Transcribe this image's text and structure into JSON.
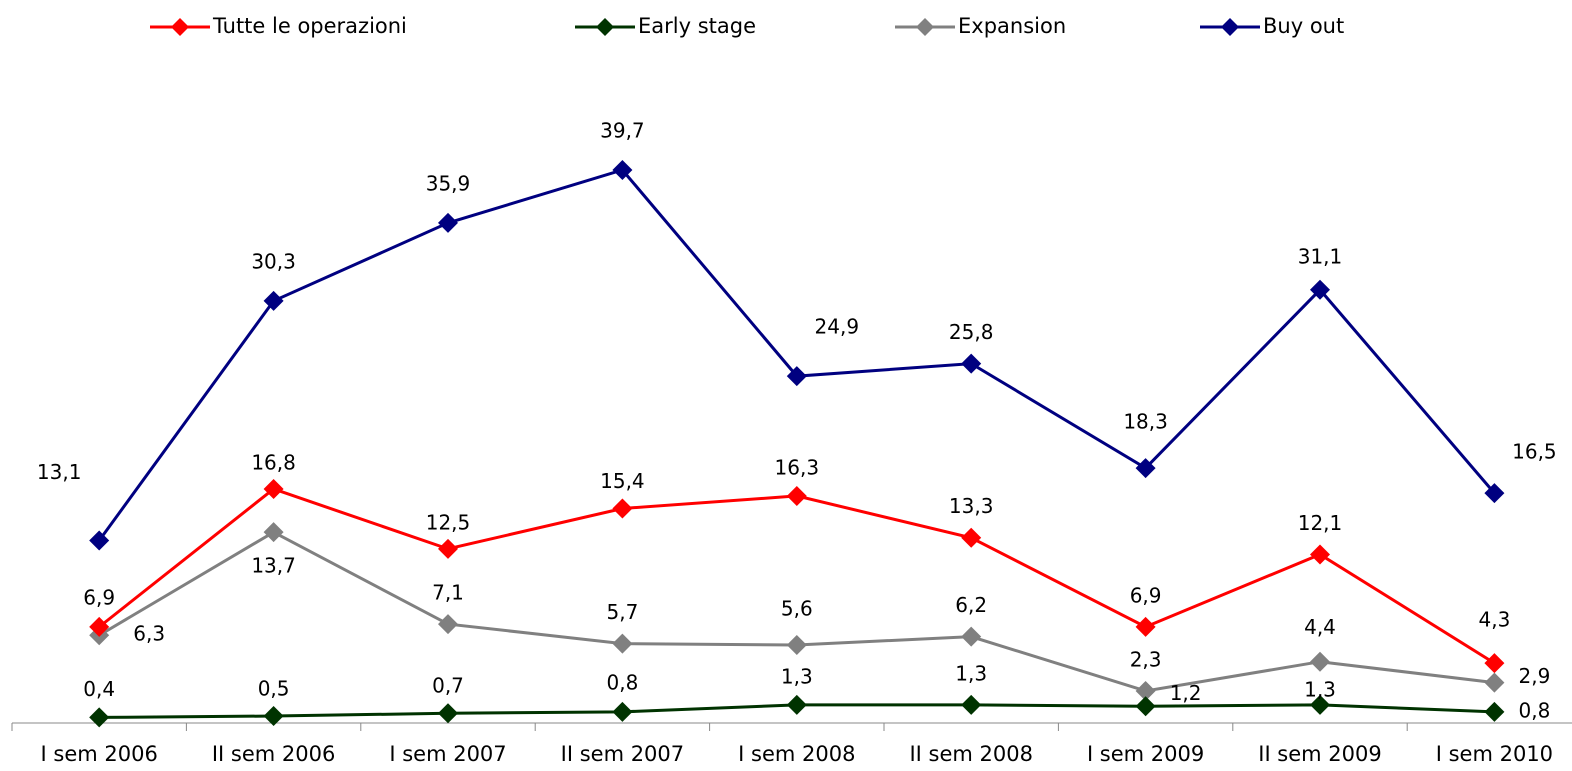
{
  "chart_data": {
    "type": "line",
    "categories": [
      "I sem 2006",
      "II sem 2006",
      "I sem 2007",
      "II sem 2007",
      "I sem 2008",
      "II sem 2008",
      "I sem 2009",
      "II sem 2009",
      "I sem 2010"
    ],
    "ylim": [
      0,
      43
    ],
    "legend": "top",
    "series": [
      {
        "name": "Tutte le operazioni",
        "color": "#ff0000",
        "values": [
          6.9,
          16.8,
          12.5,
          15.4,
          16.3,
          13.3,
          6.9,
          12.1,
          4.3
        ],
        "value_labels": [
          "6,9",
          "16,8",
          "12,5",
          "15,4",
          "16,3",
          "13,3",
          "6,9",
          "12,1",
          "4,3"
        ]
      },
      {
        "name": "Early stage",
        "color": "#003300",
        "values": [
          0.4,
          0.5,
          0.7,
          0.8,
          1.3,
          1.3,
          1.2,
          1.3,
          0.8
        ],
        "value_labels": [
          "0,4",
          "0,5",
          "0,7",
          "0,8",
          "1,3",
          "1,3",
          "1,2",
          "1,3",
          "0,8"
        ]
      },
      {
        "name": "Expansion",
        "color": "#808080",
        "values": [
          6.3,
          13.7,
          7.1,
          5.7,
          5.6,
          6.2,
          2.3,
          4.4,
          2.9
        ],
        "value_labels": [
          "6,3",
          "13,7",
          "7,1",
          "5,7",
          "5,6",
          "6,2",
          "2,3",
          "4,4",
          "2,9"
        ]
      },
      {
        "name": "Buy out",
        "color": "#000080",
        "values": [
          13.1,
          30.3,
          35.9,
          39.7,
          24.9,
          25.8,
          18.3,
          31.1,
          16.5
        ],
        "value_labels": [
          "13,1",
          "30,3",
          "35,9",
          "39,7",
          "24,9",
          "25,8",
          "18,3",
          "31,1",
          "16,5"
        ]
      }
    ]
  }
}
